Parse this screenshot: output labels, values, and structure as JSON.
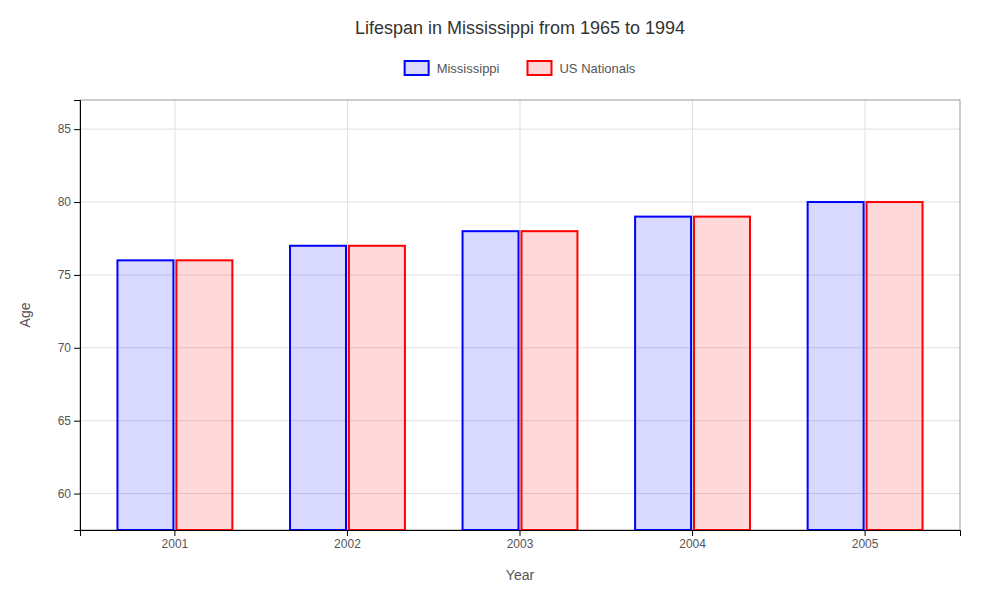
{
  "chart_data": {
    "type": "bar",
    "title": "Lifespan in Mississippi from 1965 to 1994",
    "x_label": "Year",
    "y_label": "Age",
    "categories": [
      "2001",
      "2002",
      "2003",
      "2004",
      "2005"
    ],
    "series": [
      {
        "name": "Mississippi",
        "color": "#0000ff",
        "values": [
          76,
          77,
          78,
          79,
          80
        ]
      },
      {
        "name": "US Nationals",
        "color": "#ff0000",
        "values": [
          76,
          77,
          78,
          79,
          80
        ]
      }
    ],
    "ylim": [
      57.5,
      87
    ],
    "yticks": [
      60,
      65,
      70,
      75,
      80,
      85
    ],
    "grid": true,
    "legend": "top"
  }
}
